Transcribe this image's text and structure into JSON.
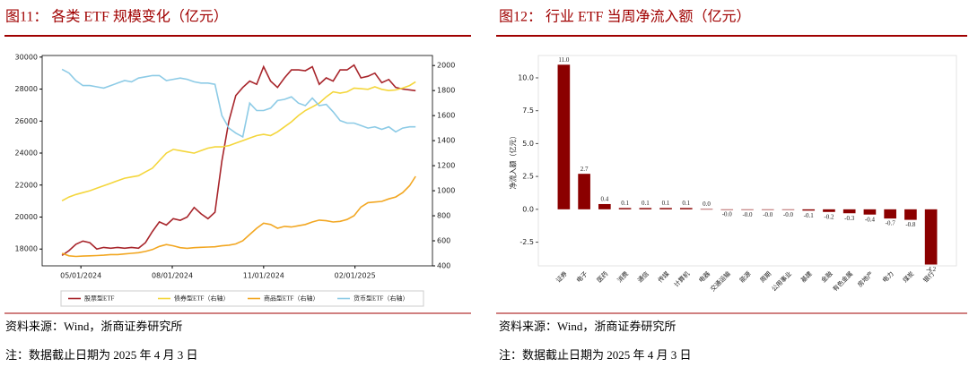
{
  "chart_data": [
    {
      "type": "line",
      "title": "图11： 各类 ETF 规模变化（亿元）",
      "x": [
        "2024-04-12",
        "2024-04-19",
        "2024-04-26",
        "2024-05-03",
        "2024-05-10",
        "2024-05-17",
        "2024-05-24",
        "2024-05-31",
        "2024-06-07",
        "2024-06-14",
        "2024-06-21",
        "2024-06-28",
        "2024-07-05",
        "2024-07-12",
        "2024-07-19",
        "2024-07-26",
        "2024-08-02",
        "2024-08-09",
        "2024-08-16",
        "2024-08-23",
        "2024-08-30",
        "2024-09-06",
        "2024-09-13",
        "2024-09-20",
        "2024-09-27",
        "2024-10-04",
        "2024-10-11",
        "2024-10-18",
        "2024-10-25",
        "2024-11-01",
        "2024-11-08",
        "2024-11-15",
        "2024-11-22",
        "2024-11-29",
        "2024-12-06",
        "2024-12-13",
        "2024-12-20",
        "2024-12-27",
        "2025-01-03",
        "2025-01-10",
        "2025-01-17",
        "2025-01-24",
        "2025-01-31",
        "2025-02-07",
        "2025-02-14",
        "2025-02-21",
        "2025-02-28",
        "2025-03-07",
        "2025-03-14",
        "2025-03-21",
        "2025-03-28",
        "2025-04-03"
      ],
      "series": [
        {
          "name": "股票型ETF",
          "color": "#a8262c",
          "values": [
            17600,
            17900,
            18300,
            18500,
            18400,
            18000,
            18100,
            18050,
            18100,
            18050,
            18100,
            18050,
            18400,
            19100,
            19700,
            19500,
            19900,
            19800,
            20000,
            20600,
            20200,
            19900,
            20300,
            23500,
            26000,
            27600,
            28100,
            28500,
            28300,
            29400,
            28500,
            28100,
            28700,
            29200,
            29200,
            29150,
            29400,
            28300,
            28700,
            28500,
            29200,
            29200,
            29500,
            28700,
            28800,
            29000,
            28400,
            28600,
            28100,
            28000,
            27950,
            27900
          ]
        },
        {
          "name": "债券型ETF（右轴）",
          "color": "#f4d63c",
          "axis": "y2",
          "values": [
            920,
            950,
            970,
            985,
            1000,
            1020,
            1040,
            1060,
            1080,
            1100,
            1110,
            1120,
            1150,
            1180,
            1240,
            1300,
            1330,
            1320,
            1310,
            1300,
            1320,
            1340,
            1350,
            1350,
            1360,
            1380,
            1400,
            1420,
            1440,
            1450,
            1440,
            1470,
            1510,
            1550,
            1600,
            1640,
            1670,
            1700,
            1750,
            1790,
            1780,
            1790,
            1820,
            1815,
            1810,
            1830,
            1810,
            1800,
            1805,
            1820,
            1840,
            1870
          ]
        },
        {
          "name": "商品型ETF（右轴）",
          "color": "#f2a722",
          "axis": "y2",
          "values": [
            500,
            480,
            475,
            478,
            480,
            482,
            485,
            490,
            490,
            495,
            500,
            505,
            515,
            530,
            555,
            570,
            560,
            545,
            540,
            545,
            548,
            550,
            552,
            560,
            565,
            575,
            600,
            650,
            700,
            740,
            730,
            700,
            715,
            710,
            720,
            730,
            750,
            765,
            760,
            750,
            755,
            770,
            800,
            870,
            905,
            910,
            915,
            935,
            950,
            985,
            1040,
            1115
          ]
        },
        {
          "name": "货币型ETF（右轴）",
          "color": "#8dcbe6",
          "axis": "y2",
          "values": [
            1970,
            1940,
            1880,
            1840,
            1840,
            1830,
            1820,
            1840,
            1860,
            1880,
            1870,
            1900,
            1910,
            1920,
            1920,
            1880,
            1890,
            1900,
            1890,
            1870,
            1860,
            1860,
            1850,
            1600,
            1500,
            1460,
            1430,
            1700,
            1640,
            1640,
            1660,
            1720,
            1730,
            1750,
            1700,
            1680,
            1740,
            1680,
            1690,
            1630,
            1560,
            1540,
            1540,
            1520,
            1500,
            1510,
            1490,
            1510,
            1470,
            1500,
            1510,
            1510
          ]
        }
      ],
      "xlim": [
        "2024-03-23",
        "2025-04-20"
      ],
      "xticks": [
        {
          "value": "2024-05-01",
          "label": "05/01/2024"
        },
        {
          "value": "2024-08-01",
          "label": "08/01/2024"
        },
        {
          "value": "2024-11-01",
          "label": "11/01/2024"
        },
        {
          "value": "2025-02-01",
          "label": "02/01/2025"
        }
      ],
      "ylim": [
        16950,
        30100
      ],
      "yticks": [
        18000,
        20000,
        22000,
        24000,
        26000,
        28000,
        30000
      ],
      "y2lim": [
        400,
        2080
      ],
      "y2ticks": [
        400,
        600,
        800,
        1000,
        1200,
        1400,
        1600,
        1800,
        2000
      ],
      "legend": "bottom"
    },
    {
      "type": "bar",
      "title": "图12： 行业 ETF 当周净流入额（亿元）",
      "y_label": "净流入额（亿元）",
      "color": "#8b0000",
      "categories": [
        "证券",
        "电子",
        "医药",
        "消费",
        "通信",
        "传媒",
        "计算机",
        "电器",
        "交通运输",
        "能源",
        "周期",
        "公用事业",
        "基建",
        "金融",
        "有色金属",
        "房地产",
        "电力",
        "煤炭",
        "银行"
      ],
      "values": [
        11.0,
        2.7,
        0.4,
        0.1,
        0.1,
        0.1,
        0.1,
        0.02,
        -0.02,
        -0.03,
        -0.03,
        -0.04,
        -0.1,
        -0.2,
        -0.3,
        -0.4,
        -0.7,
        -0.8,
        -4.2
      ],
      "value_labels": [
        "11.0",
        "2.7",
        "0.4",
        "0.1",
        "0.1",
        "0.1",
        "0.1",
        "0.0",
        "-0.0",
        "-0.0",
        "-0.0",
        "-0.0",
        "-0.1",
        "-0.2",
        "-0.3",
        "-0.4",
        "-0.7",
        "-0.8",
        "-4.2"
      ],
      "ylim": [
        -4.3,
        11.7
      ],
      "yticks": [
        -2.5,
        {
          "value": 0,
          "label": "0.0"
        },
        2.5,
        {
          "value": 5,
          "label": "5.0"
        },
        7.5,
        {
          "value": 10,
          "label": "10.0"
        }
      ]
    }
  ],
  "footnotes": [
    {
      "source": "资料来源：Wind，浙商证券研究所",
      "note": "注：数据截止日期为 2025 年 4 月 3 日"
    },
    {
      "source": "资料来源：Wind，浙商证券研究所",
      "note": "注：数据截止日期为 2025 年 4 月 3 日"
    }
  ]
}
